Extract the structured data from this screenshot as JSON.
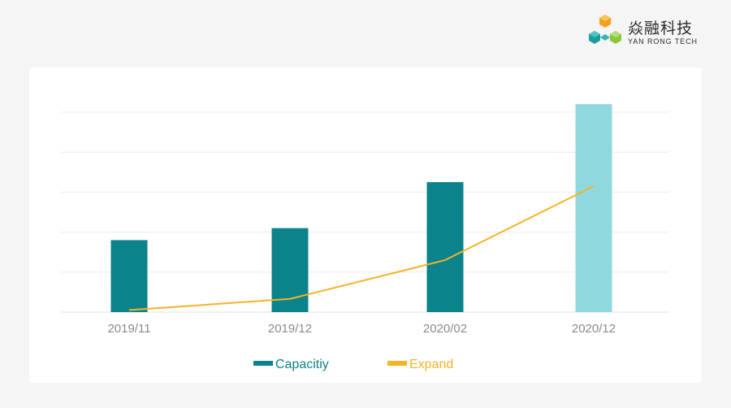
{
  "brand": {
    "name_cn": "焱融科技",
    "name_en": "YAN RONG TECH",
    "colors": {
      "orange": "#f3a21b",
      "green": "#8cc63e",
      "teal": "#1e9b9c"
    }
  },
  "chart_data": {
    "type": "bar",
    "categories": [
      "2019/11",
      "2019/12",
      "2020/02",
      "2020/12"
    ],
    "series": [
      {
        "name": "Capacitiy",
        "kind": "bar",
        "values": [
          1.8,
          2.1,
          3.25,
          5.2
        ],
        "color": "#0a838a",
        "highlight_color": "#8fd8dd",
        "highlight_index": 3
      },
      {
        "name": "Expand",
        "kind": "line",
        "values": [
          0.05,
          0.33,
          1.3,
          3.15
        ],
        "color": "#f5b327"
      }
    ],
    "ylim": [
      0,
      5
    ],
    "grid": true,
    "legend": "bottom-center",
    "title": "",
    "xlabel": "",
    "ylabel": ""
  }
}
